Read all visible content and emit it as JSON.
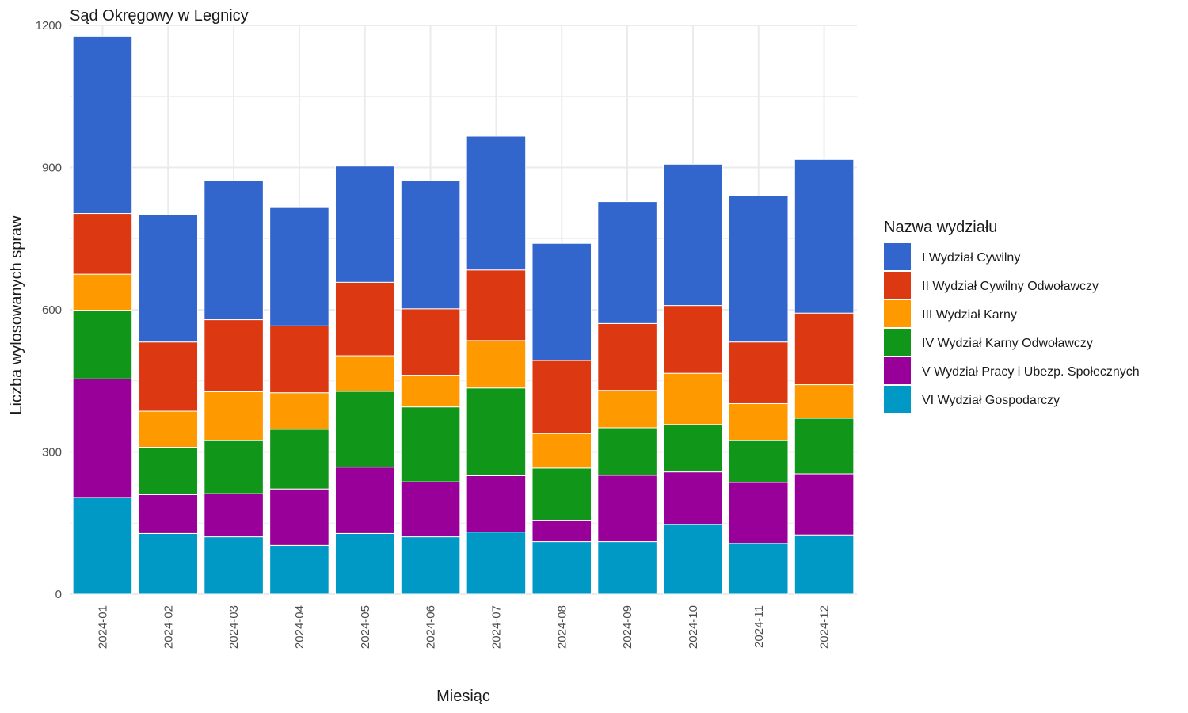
{
  "chart_data": {
    "type": "bar",
    "stacked": true,
    "title": "Sąd Okręgowy w Legnicy",
    "xlabel": "Miesiąc",
    "ylabel": "Liczba wylosowanych spraw",
    "ylim": [
      0,
      1200
    ],
    "yticks": [
      0,
      300,
      600,
      900,
      1200
    ],
    "grid": true,
    "legend_title": "Nazwa wydziału",
    "legend_position": "right",
    "categories": [
      "2024-01",
      "2024-02",
      "2024-03",
      "2024-04",
      "2024-05",
      "2024-06",
      "2024-07",
      "2024-08",
      "2024-09",
      "2024-10",
      "2024-11",
      "2024-12"
    ],
    "series": [
      {
        "name": "VI Wydział Gospodarczy",
        "color": "#0099c6",
        "values": [
          204,
          128,
          121,
          103,
          128,
          121,
          131,
          111,
          111,
          147,
          107,
          125
        ]
      },
      {
        "name": "V Wydział Pracy i Ubezp. Społecznych",
        "color": "#990099",
        "values": [
          250,
          82,
          91,
          119,
          140,
          116,
          119,
          44,
          140,
          111,
          129,
          129
        ]
      },
      {
        "name": "IV Wydział Karny Odwoławczy",
        "color": "#109618",
        "values": [
          145,
          100,
          112,
          126,
          160,
          158,
          185,
          111,
          100,
          100,
          88,
          117
        ]
      },
      {
        "name": "III Wydział Karny",
        "color": "#ff9900",
        "values": [
          76,
          76,
          103,
          77,
          75,
          67,
          100,
          73,
          79,
          108,
          78,
          71
        ]
      },
      {
        "name": "II Wydział Cywilny Odwoławczy",
        "color": "#dc3912",
        "values": [
          128,
          146,
          152,
          141,
          155,
          140,
          149,
          154,
          141,
          143,
          130,
          151
        ]
      },
      {
        "name": "I Wydział Cywilny",
        "color": "#3366cc",
        "values": [
          373,
          268,
          293,
          251,
          245,
          270,
          282,
          247,
          257,
          298,
          308,
          324
        ]
      }
    ],
    "legend_order": [
      "I Wydział Cywilny",
      "II Wydział Cywilny Odwoławczy",
      "III Wydział Karny",
      "IV Wydział Karny Odwoławczy",
      "V Wydział Pracy i Ubezp. Społecznych",
      "VI Wydział Gospodarczy"
    ]
  }
}
